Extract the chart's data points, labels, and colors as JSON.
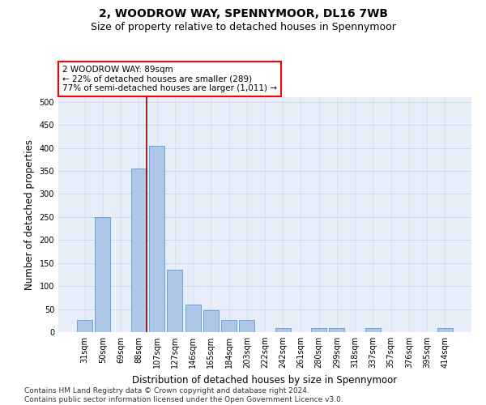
{
  "title": "2, WOODROW WAY, SPENNYMOOR, DL16 7WB",
  "subtitle": "Size of property relative to detached houses in Spennymoor",
  "xlabel": "Distribution of detached houses by size in Spennymoor",
  "ylabel": "Number of detached properties",
  "categories": [
    "31sqm",
    "50sqm",
    "69sqm",
    "88sqm",
    "107sqm",
    "127sqm",
    "146sqm",
    "165sqm",
    "184sqm",
    "203sqm",
    "222sqm",
    "242sqm",
    "261sqm",
    "280sqm",
    "299sqm",
    "318sqm",
    "337sqm",
    "357sqm",
    "376sqm",
    "395sqm",
    "414sqm"
  ],
  "values": [
    27,
    250,
    0,
    355,
    405,
    135,
    60,
    47,
    27,
    27,
    0,
    8,
    0,
    8,
    8,
    0,
    8,
    0,
    0,
    0,
    8
  ],
  "bar_color": "#aec6e8",
  "bar_edge_color": "#5b9bd5",
  "vline_color": "#8B0000",
  "annotation_text": "2 WOODROW WAY: 89sqm\n← 22% of detached houses are smaller (289)\n77% of semi-detached houses are larger (1,011) →",
  "annotation_box_color": "white",
  "annotation_box_edge_color": "red",
  "ylim": [
    0,
    510
  ],
  "yticks": [
    0,
    50,
    100,
    150,
    200,
    250,
    300,
    350,
    400,
    450,
    500
  ],
  "grid_color": "#ccd5e8",
  "bg_color": "#e8eef8",
  "footer_text": "Contains HM Land Registry data © Crown copyright and database right 2024.\nContains public sector information licensed under the Open Government Licence v3.0.",
  "title_fontsize": 10,
  "subtitle_fontsize": 9,
  "xlabel_fontsize": 8.5,
  "ylabel_fontsize": 8.5,
  "tick_fontsize": 7,
  "footer_fontsize": 6.5,
  "annotation_fontsize": 7.5
}
